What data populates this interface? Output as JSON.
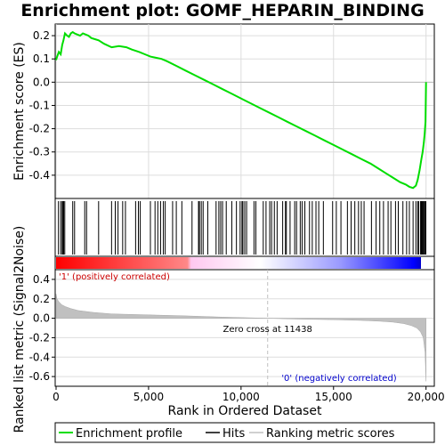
{
  "chart_data": [
    {
      "type": "line",
      "title": "Enrichment plot: GOMF_HEPARIN_BINDING",
      "xlabel": "",
      "ylabel": "Enrichment score (ES)",
      "xlim": [
        0,
        20400
      ],
      "ylim": [
        -0.5,
        0.25
      ],
      "y_ticks": [
        "0.2",
        "0.1",
        "0.0",
        "-0.1",
        "-0.2",
        "-0.3",
        "-0.4"
      ],
      "y_tick_values": [
        0.2,
        0.1,
        0.0,
        -0.1,
        -0.2,
        -0.3,
        -0.4
      ],
      "grid": true,
      "series": [
        {
          "name": "Enrichment profile",
          "color": "#00dd00",
          "x": [
            0,
            60,
            150,
            250,
            330,
            400,
            480,
            600,
            700,
            800,
            900,
            1000,
            1150,
            1300,
            1450,
            1600,
            1750,
            1900,
            2100,
            2300,
            2600,
            3000,
            3400,
            3800,
            4100,
            4300,
            4500,
            4800,
            5100,
            5400,
            5700,
            6000,
            6500,
            7000,
            7500,
            8000,
            8500,
            9000,
            9500,
            10000,
            10500,
            11000,
            11500,
            12000,
            12500,
            13000,
            13500,
            14000,
            14500,
            15000,
            15500,
            16000,
            16500,
            17000,
            17400,
            17800,
            18200,
            18600,
            18900,
            19100,
            19300,
            19450,
            19550,
            19650,
            19750,
            19820,
            19880,
            19930,
            19970,
            20000
          ],
          "y": [
            0.095,
            0.11,
            0.13,
            0.12,
            0.16,
            0.18,
            0.21,
            0.2,
            0.195,
            0.21,
            0.215,
            0.21,
            0.205,
            0.2,
            0.21,
            0.205,
            0.2,
            0.19,
            0.185,
            0.18,
            0.165,
            0.15,
            0.155,
            0.15,
            0.14,
            0.135,
            0.13,
            0.12,
            0.11,
            0.105,
            0.1,
            0.09,
            0.07,
            0.05,
            0.03,
            0.01,
            -0.01,
            -0.03,
            -0.05,
            -0.07,
            -0.09,
            -0.11,
            -0.13,
            -0.15,
            -0.17,
            -0.19,
            -0.21,
            -0.23,
            -0.25,
            -0.27,
            -0.29,
            -0.31,
            -0.33,
            -0.35,
            -0.37,
            -0.39,
            -0.41,
            -0.43,
            -0.44,
            -0.45,
            -0.455,
            -0.445,
            -0.42,
            -0.38,
            -0.33,
            -0.3,
            -0.26,
            -0.22,
            -0.17,
            0.0
          ]
        }
      ]
    },
    {
      "type": "heatmap",
      "title": "Hits",
      "xlim": [
        0,
        20400
      ],
      "hits": [
        130,
        250,
        330,
        370,
        410,
        470,
        900,
        1000,
        1550,
        1650,
        2300,
        3000,
        3200,
        3350,
        3600,
        3750,
        4300,
        4450,
        4550,
        5100,
        5350,
        5500,
        5650,
        5800,
        5900,
        6300,
        6500,
        6800,
        7350,
        7700,
        7750,
        7850,
        7950,
        8200,
        8650,
        8800,
        8900,
        9000,
        9200,
        9500,
        9750,
        9950,
        10050,
        10100,
        10200,
        10300,
        10700,
        10800,
        11200,
        11350,
        11550,
        11650,
        11800,
        11950,
        12250,
        12400,
        12450,
        12650,
        12900,
        13000,
        13200,
        13300,
        13450,
        13700,
        13850,
        14050,
        14200,
        14450,
        14950,
        15150,
        15400,
        15750,
        15950,
        16150,
        16350,
        16500,
        16650,
        17050,
        17300,
        17500,
        17700,
        17950,
        18100,
        18350,
        18500,
        18750,
        18950,
        19100,
        19300,
        19450,
        19550,
        19600,
        19700,
        19750,
        19800,
        19850,
        19900,
        19950,
        19990
      ],
      "colorbar": {
        "left_color": "#ff0000",
        "mid_color": "#ffffff",
        "right_color": "#0000ff"
      }
    },
    {
      "type": "area",
      "title": "Ranking metric scores",
      "xlabel": "Rank in Ordered Dataset",
      "ylabel": "Ranked list metric (Signal2Noise)",
      "xlim": [
        0,
        20400
      ],
      "ylim": [
        -0.7,
        0.5
      ],
      "x_ticks": [
        "0",
        "5,000",
        "10,000",
        "15,000",
        "20,000"
      ],
      "x_tick_values": [
        0,
        5000,
        10000,
        15000,
        20000
      ],
      "y_ticks": [
        "0.4",
        "0.2",
        "0.0",
        "-0.2",
        "-0.4",
        "-0.6"
      ],
      "y_tick_values": [
        0.4,
        0.2,
        0.0,
        -0.2,
        -0.4,
        -0.6
      ],
      "fill_color": "#c0c0c0",
      "series": [
        {
          "name": "Ranking metric scores",
          "x": [
            0,
            50,
            150,
            300,
            500,
            800,
            1200,
            2000,
            3000,
            5000,
            7000,
            9000,
            11438,
            13000,
            15000,
            16500,
            17500,
            18200,
            18800,
            19200,
            19500,
            19700,
            19850,
            19950,
            20000
          ],
          "y": [
            0.25,
            0.2,
            0.17,
            0.14,
            0.12,
            0.1,
            0.08,
            0.06,
            0.045,
            0.035,
            0.025,
            0.012,
            0.0,
            -0.008,
            -0.015,
            -0.022,
            -0.03,
            -0.04,
            -0.055,
            -0.075,
            -0.1,
            -0.14,
            -0.2,
            -0.35,
            -0.65
          ]
        }
      ],
      "annotations": [
        {
          "text": "'1' (positively correlated)",
          "color": "#cc0000",
          "x": 100
        },
        {
          "text": "Zero cross at 11438",
          "color": "#000000",
          "x": 11438
        },
        {
          "text": "'0' (negatively correlated)",
          "color": "#0000cc",
          "x": 15300
        }
      ]
    }
  ],
  "legend": {
    "placement": "bottom",
    "items": [
      {
        "label": "Enrichment profile",
        "color": "#00dd00"
      },
      {
        "label": "Hits",
        "color": "#000000"
      },
      {
        "label": "Ranking metric scores",
        "color": "#c0c0c0"
      }
    ]
  }
}
